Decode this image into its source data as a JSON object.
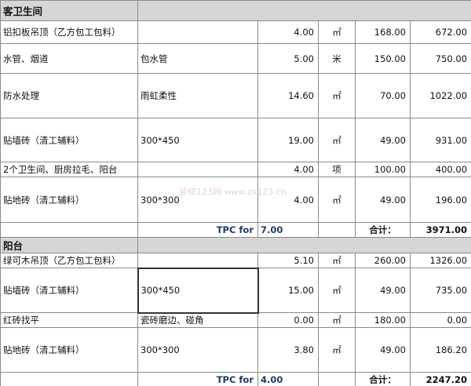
{
  "sections": [
    {
      "title": "客卫生间",
      "rows": [
        [
          "铝扣板吊顶（乙方包工包料）",
          null,
          "4.00",
          "㎡",
          "168.00",
          "672.00"
        ],
        [
          "水管、烟道",
          "包水管",
          "5.00",
          "米",
          "150.00",
          "750.00"
        ],
        [
          "防水处理",
          "雨虹柔性",
          "14.60",
          "㎡",
          "70.00",
          "1022.00"
        ],
        [
          "贴墙砖（清工辅料）",
          "300*450",
          "19.00",
          "㎡",
          "49.00",
          "931.00"
        ],
        [
          "2个卫生间、厨房拉毛、阳台",
          null,
          "4.00",
          "项",
          "100.00",
          "400.00"
        ],
        [
          "贴地砖（清工辅料）",
          "300*300",
          "4.00",
          "㎡",
          "49.00",
          "196.00"
        ]
      ],
      "tpc_label": "TPC for",
      "tpc_value": "7.00",
      "sum_label": "合计：",
      "sum": "3971.00"
    },
    {
      "title": "阳台",
      "rows": [
        [
          "绿可木吊顶（乙方包工包料）",
          null,
          "5.10",
          "㎡",
          "260.00",
          "1326.00"
        ],
        [
          "贴墙砖（清工辅料）",
          "300*450",
          "15.00",
          "㎡",
          "49.00",
          "735.00"
        ],
        [
          "红砖找平",
          "瓷砖磨边、碰角",
          "0.00",
          "㎡",
          "180.00",
          "0.00"
        ],
        [
          "贴地砖（清工辅料）",
          "300*300",
          "3.80",
          "㎡",
          "49.00",
          "186.20"
        ]
      ],
      "tpc_label": "TPC for",
      "tpc_value": "4.00",
      "sum_label": "合计：",
      "sum": "2247.20"
    }
  ],
  "watermark": "装修123网 www.zx123.cn"
}
